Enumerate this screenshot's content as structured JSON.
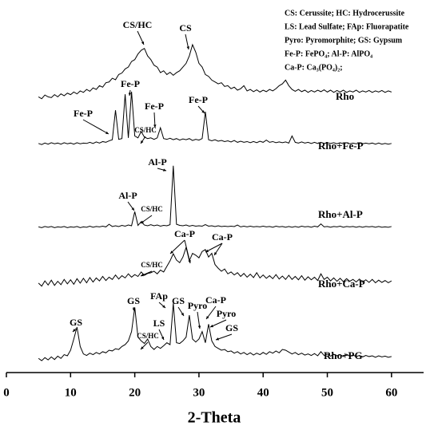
{
  "chart_data": {
    "type": "line",
    "xlabel": "2-Theta",
    "xlim": [
      0,
      65
    ],
    "xticks": [
      0,
      10,
      20,
      30,
      40,
      50,
      60
    ],
    "ylim": [
      0,
      100
    ],
    "legend_box": [
      "CS: Cerussite;  HC: Hydrocerussite",
      "LS: Lead Sulfate;  FAp: Fluorapatite",
      "Pyro: Pyromorphite;  GS: Gypsum",
      "Fe-P: FePO₄; Al-P: AlPO₄",
      "Ca-P: Ca₃(PO₄)₂;"
    ],
    "annotations": [
      "CS/HC",
      "CS",
      "Fe-P",
      "Fe-P",
      "Fe-P",
      "Fe-P",
      "CS/HC",
      "Al-P",
      "Al-P",
      "CS/HC",
      "Ca-P",
      "Ca-P",
      "CS/HC",
      "GS",
      "GS",
      "FAp",
      "GS",
      "LS",
      "Pyro",
      "Ca-P",
      "Pyro",
      "GS",
      "CS/HC"
    ],
    "x": [
      5,
      5.5,
      6,
      6.5,
      7,
      7.5,
      8,
      8.5,
      9,
      9.5,
      10,
      10.5,
      11,
      11.5,
      12,
      12.5,
      13,
      13.5,
      14,
      14.5,
      15,
      15.5,
      16,
      16.5,
      17,
      17.5,
      18,
      18.5,
      19,
      19.5,
      20,
      20.5,
      21,
      21.5,
      22,
      22.5,
      23,
      23.5,
      24,
      24.5,
      25,
      25.5,
      26,
      26.5,
      27,
      27.5,
      28,
      28.5,
      29,
      29.5,
      30,
      30.5,
      31,
      31.5,
      32,
      32.5,
      33,
      33.5,
      34,
      34.5,
      35,
      35.5,
      36,
      36.5,
      37,
      37.5,
      38,
      38.5,
      39,
      39.5,
      40,
      40.5,
      41,
      41.5,
      42,
      42.5,
      43,
      43.5,
      44,
      44.5,
      45,
      45.5,
      46,
      46.5,
      47,
      47.5,
      48,
      48.5,
      49,
      49.5,
      50,
      50.5,
      51,
      51.5,
      52,
      52.5,
      53,
      53.5,
      54,
      54.5,
      55,
      55.5,
      56,
      56.5,
      57,
      57.5,
      58,
      58.5,
      59,
      59.5,
      60
    ],
    "series": [
      {
        "name": "Rho",
        "color": "#000000",
        "values": [
          74,
          73.5,
          74.5,
          74,
          73.8,
          74.6,
          74,
          74.8,
          74.3,
          75,
          74.6,
          75.3,
          74.8,
          75.6,
          75.2,
          76,
          75.5,
          76.4,
          76,
          77,
          76.6,
          77.8,
          78,
          79,
          78.6,
          80,
          80.4,
          81.5,
          82,
          83.5,
          84,
          85.5,
          86.5,
          87,
          85,
          84,
          82.5,
          82,
          80.5,
          81,
          80,
          80.6,
          79.8,
          80.5,
          81,
          82,
          83,
          85,
          88,
          86,
          83,
          82,
          80,
          79.5,
          78.5,
          78,
          77.5,
          77.8,
          76.8,
          77,
          76.2,
          76.6,
          75.8,
          76.2,
          77,
          75.6,
          76,
          75.4,
          75.9,
          75.3,
          75.8,
          75.4,
          76,
          75.6,
          76.2,
          77,
          77.5,
          78.5,
          77,
          76,
          75.5,
          76,
          75.4,
          75.8,
          75.2,
          75.7,
          75.3,
          75.8,
          75.4,
          75.9,
          75.3,
          75.8,
          75.2,
          75.7,
          75.3,
          75.8,
          75.2,
          75.6,
          75.3,
          75.8,
          75.2,
          75.6,
          75.3,
          75.7,
          75.2,
          75.6,
          75.3,
          75.7,
          75.2,
          75.6,
          75.3
        ]
      },
      {
        "name": "Rho+Fe-P",
        "color": "#000000",
        "values": [
          61.5,
          61.2,
          61.6,
          61.3,
          61.7,
          61.4,
          61.6,
          61.3,
          61.7,
          61.4,
          61.6,
          61.3,
          61.7,
          61.4,
          61.6,
          61.5,
          61.8,
          61.5,
          61.9,
          61.6,
          62,
          61.8,
          62.2,
          62.5,
          70.4,
          62.6,
          62.8,
          74.7,
          63,
          75.4,
          63.5,
          63,
          64.7,
          63.2,
          62.8,
          63,
          62.6,
          63,
          65.7,
          62.8,
          62.6,
          62.9,
          62.5,
          62.8,
          62.4,
          62.7,
          62.5,
          62.8,
          62.3,
          62.6,
          62.4,
          62.8,
          70,
          62.5,
          62.2,
          62.5,
          62.1,
          62.3,
          62,
          62.2,
          61.9,
          62.3,
          61.8,
          62.1,
          61.8,
          62,
          61.7,
          62,
          61.7,
          62.1,
          61.8,
          62.4,
          61.8,
          62,
          61.7,
          61.9,
          61.7,
          61.9,
          61.6,
          63.5,
          61.8,
          61.6,
          61.9,
          61.6,
          61.8,
          61.5,
          61.8,
          61.5,
          61.8,
          61.5,
          61.7,
          61.5,
          61.7,
          61.4,
          61.7,
          61.4,
          61.7,
          61.4,
          61.6,
          61.4,
          61.6,
          61.4,
          61.6,
          61.4,
          61.6,
          61.3,
          61.6,
          61.3,
          61.5,
          61.3,
          61.5
        ]
      },
      {
        "name": "Rho+Al-P",
        "color": "#000000",
        "values": [
          39.1,
          38.9,
          39.2,
          39,
          39.2,
          38.9,
          39.1,
          39,
          39.2,
          38.9,
          39.1,
          39,
          39.2,
          38.9,
          39.1,
          39,
          39.3,
          39,
          39.2,
          39.1,
          39.3,
          39.1,
          39.8,
          39.2,
          39.4,
          39.2,
          39.5,
          39.3,
          39.6,
          39.4,
          43.2,
          39.5,
          40.5,
          39.6,
          39.4,
          39.7,
          39.4,
          39.6,
          39.3,
          39.5,
          39.4,
          39.7,
          55.5,
          39.8,
          39.5,
          39.4,
          39.6,
          39.3,
          39.5,
          39.3,
          39.4,
          39.3,
          39.7,
          39.3,
          39.4,
          39.2,
          39.4,
          39.2,
          39.3,
          39.2,
          39.3,
          39.2,
          39.6,
          39.1,
          39.3,
          39.1,
          39.3,
          39.1,
          39.2,
          39.1,
          39.3,
          39.1,
          39.2,
          39,
          39.3,
          39.1,
          39.2,
          39,
          39.2,
          39,
          39.2,
          39,
          39.3,
          39.1,
          39.2,
          39,
          39.3,
          39.1,
          39.9,
          39.1,
          39.2,
          39,
          39.2,
          39.1,
          39.3,
          39,
          39.2,
          39.1,
          39.2,
          39,
          39.2,
          39,
          39.2,
          39.1,
          39.2,
          39,
          39.2,
          39,
          39.1,
          39,
          39.2
        ]
      },
      {
        "name": "Rho+Ca-P",
        "color": "#000000",
        "values": [
          24,
          23.2,
          24.6,
          23.5,
          24.8,
          23.4,
          24.5,
          23.6,
          25,
          23.8,
          24.9,
          23.7,
          25.2,
          24,
          25.3,
          24.1,
          25.5,
          24.3,
          25.4,
          24.6,
          25.8,
          24.7,
          25.6,
          25,
          26.2,
          25.1,
          26,
          25.4,
          26.5,
          25.6,
          26.3,
          25.8,
          27,
          26.1,
          26.6,
          26.8,
          27.2,
          26.5,
          27.5,
          27,
          28.5,
          30,
          31.9,
          30.2,
          29.5,
          31,
          33.6,
          30,
          32,
          31.5,
          30.8,
          32.5,
          33,
          31,
          32,
          29,
          28,
          27.2,
          27.8,
          26.5,
          27,
          26.2,
          26.8,
          25.8,
          26.6,
          25.6,
          26.4,
          25.5,
          26.8,
          25.4,
          26.2,
          25.3,
          26,
          25.2,
          26.3,
          25.1,
          25.9,
          25,
          26.1,
          25,
          25.8,
          24.9,
          26,
          24.8,
          25.7,
          24.9,
          25.6,
          24.7,
          26.5,
          25,
          25.6,
          24.6,
          25.4,
          24.5,
          25.3,
          24.4,
          25.2,
          24.5,
          25,
          24.3,
          25.1,
          24.3,
          24.9,
          24.2,
          25,
          24.1,
          24.8,
          24.2,
          24.7,
          24.1,
          24.6
        ]
      },
      {
        "name": "Rho+PG",
        "color": "#000000",
        "values": [
          3.8,
          3.2,
          4,
          3.4,
          4.2,
          3.5,
          4.4,
          3.8,
          4.8,
          4.5,
          6,
          9,
          12.2,
          7,
          5,
          4.6,
          5.2,
          4.8,
          5.4,
          5,
          5.6,
          5.3,
          6,
          5.8,
          6.4,
          6.2,
          7,
          7.5,
          8.5,
          11,
          17.5,
          9.5,
          8.5,
          7.8,
          9,
          7,
          6.2,
          7,
          6.5,
          7.2,
          8,
          7.5,
          18.6,
          8,
          7.8,
          8.5,
          9.5,
          15.4,
          9,
          8.2,
          9,
          11,
          8,
          13,
          8.5,
          7,
          6.5,
          6,
          6.2,
          5.6,
          5.8,
          5.2,
          5.6,
          5,
          5.4,
          4.8,
          5.3,
          4.7,
          5.2,
          4.8,
          5.4,
          4.9,
          5.6,
          5.2,
          5.8,
          5.3,
          6.2,
          6,
          5.5,
          5,
          5.4,
          4.8,
          5.2,
          4.7,
          5,
          4.6,
          5.1,
          4.5,
          5.6,
          4.6,
          5,
          4.4,
          4.9,
          4.5,
          4.8,
          4.3,
          4.9,
          4.4,
          4.7,
          4.3,
          4.6,
          4.2,
          4.6,
          4.3,
          4.5,
          4.1,
          4.5,
          4.2,
          4.4,
          4.1,
          4.3
        ]
      }
    ]
  }
}
